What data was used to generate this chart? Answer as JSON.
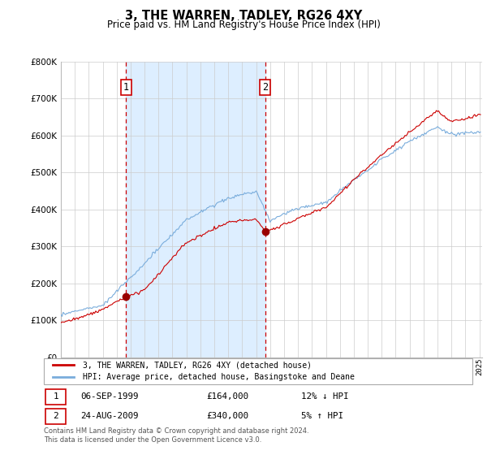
{
  "title": "3, THE WARREN, TADLEY, RG26 4XY",
  "subtitle": "Price paid vs. HM Land Registry's House Price Index (HPI)",
  "legend_line1": "3, THE WARREN, TADLEY, RG26 4XY (detached house)",
  "legend_line2": "HPI: Average price, detached house, Basingstoke and Deane",
  "table_row1_date": "06-SEP-1999",
  "table_row1_price": "£164,000",
  "table_row1_hpi": "12% ↓ HPI",
  "table_row2_date": "24-AUG-2009",
  "table_row2_price": "£340,000",
  "table_row2_hpi": "5% ↑ HPI",
  "footnote": "Contains HM Land Registry data © Crown copyright and database right 2024.\nThis data is licensed under the Open Government Licence v3.0.",
  "sale1_year": 1999.67,
  "sale1_price": 164000,
  "sale2_year": 2009.64,
  "sale2_price": 340000,
  "red_line_color": "#cc0000",
  "blue_line_color": "#7aaddc",
  "shade_color": "#ddeeff",
  "marker_color": "#990000",
  "dashed_line_color": "#cc0000",
  "grid_color": "#cccccc",
  "ylim_min": 0,
  "ylim_max": 800000,
  "xlim_min": 1995.0,
  "xlim_max": 2025.2
}
